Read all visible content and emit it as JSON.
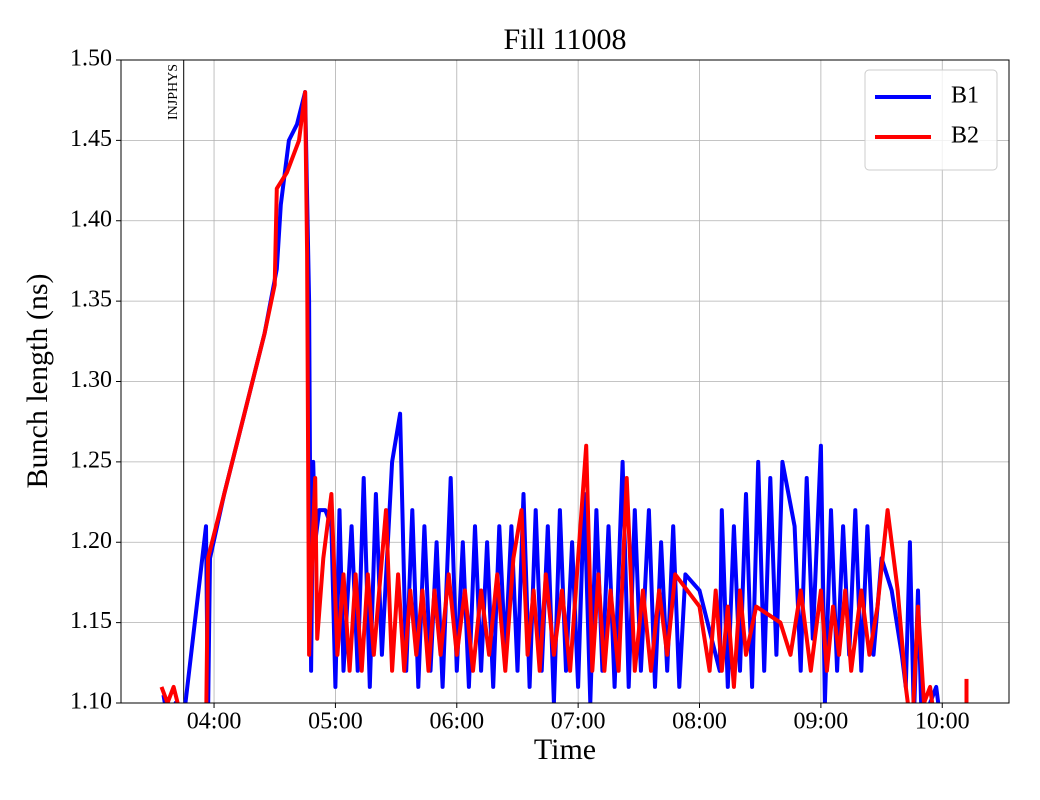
{
  "chart_data": {
    "type": "line",
    "title": "Fill 11008",
    "xlabel": "Time",
    "ylabel": "Bunch length (ns)",
    "xlim": [
      "03:14",
      "10:33"
    ],
    "xticks": [
      "04:00",
      "05:00",
      "06:00",
      "07:00",
      "08:00",
      "09:00",
      "10:00"
    ],
    "ylim": [
      1.1,
      1.5
    ],
    "yticks": [
      {
        "value": 1.1,
        "label": "1.10"
      },
      1.15,
      {
        "value": 1.2,
        "label": "1.20"
      },
      1.25,
      {
        "value": 1.3,
        "label": "1.30"
      },
      1.35,
      {
        "value": 1.4,
        "label": "1.40"
      },
      1.45,
      {
        "value": 1.5,
        "label": "1.50"
      }
    ],
    "grid": true,
    "legend": "upper right",
    "vlines": [
      {
        "x": "03:45",
        "label": "INJPHYS"
      }
    ],
    "series": [
      {
        "name": "B1",
        "color": "#0000ff",
        "x": [
          "03:35",
          "03:37",
          "03:41",
          "03:44",
          "03:56",
          "03:57",
          "03:58",
          "04:05",
          "04:15",
          "04:25",
          "04:31",
          "04:33",
          "04:37",
          "04:41",
          "04:45",
          "04:47",
          "04:48",
          "04:49",
          "04:50",
          "04:52",
          "04:55",
          "04:58",
          "05:00",
          "05:02",
          "05:04",
          "05:08",
          "05:11",
          "05:14",
          "05:17",
          "05:20",
          "05:23",
          "05:28",
          "05:32",
          "05:35",
          "05:38",
          "05:41",
          "05:44",
          "05:47",
          "05:50",
          "05:53",
          "05:57",
          "06:00",
          "06:03",
          "06:06",
          "06:09",
          "06:12",
          "06:15",
          "06:18",
          "06:21",
          "06:24",
          "06:27",
          "06:30",
          "06:33",
          "06:36",
          "06:39",
          "06:42",
          "06:45",
          "06:48",
          "06:51",
          "06:54",
          "06:57",
          "07:00",
          "07:03",
          "07:06",
          "07:09",
          "07:12",
          "07:15",
          "07:18",
          "07:22",
          "07:25",
          "07:28",
          "07:31",
          "07:35",
          "07:38",
          "07:41",
          "07:44",
          "07:47",
          "07:50",
          "07:53",
          "08:00",
          "08:10",
          "08:11",
          "08:14",
          "08:17",
          "08:20",
          "08:23",
          "08:26",
          "08:29",
          "08:32",
          "08:35",
          "08:38",
          "08:41",
          "08:47",
          "08:50",
          "08:53",
          "08:56",
          "09:00",
          "09:02",
          "09:05",
          "09:08",
          "09:11",
          "09:14",
          "09:17",
          "09:20",
          "09:23",
          "09:26",
          "09:30",
          "09:35",
          "09:40",
          "09:42",
          "09:44",
          "09:46",
          "09:48",
          "09:50",
          "09:54",
          "09:57",
          "10:00"
        ],
        "values": [
          1.105,
          1.09,
          1.1,
          1.08,
          1.21,
          1.09,
          1.19,
          1.23,
          1.28,
          1.33,
          1.37,
          1.41,
          1.45,
          1.46,
          1.48,
          1.35,
          1.12,
          1.25,
          1.2,
          1.22,
          1.22,
          1.21,
          1.11,
          1.22,
          1.12,
          1.21,
          1.12,
          1.24,
          1.11,
          1.23,
          1.13,
          1.25,
          1.28,
          1.12,
          1.22,
          1.11,
          1.21,
          1.12,
          1.2,
          1.11,
          1.24,
          1.12,
          1.2,
          1.11,
          1.21,
          1.12,
          1.2,
          1.11,
          1.21,
          1.13,
          1.21,
          1.12,
          1.23,
          1.11,
          1.22,
          1.12,
          1.21,
          1.1,
          1.22,
          1.12,
          1.2,
          1.11,
          1.23,
          1.1,
          1.22,
          1.12,
          1.21,
          1.11,
          1.25,
          1.11,
          1.22,
          1.12,
          1.22,
          1.11,
          1.2,
          1.12,
          1.21,
          1.11,
          1.18,
          1.17,
          1.12,
          1.22,
          1.11,
          1.21,
          1.12,
          1.23,
          1.11,
          1.25,
          1.12,
          1.24,
          1.13,
          1.25,
          1.21,
          1.12,
          1.24,
          1.14,
          1.26,
          1.1,
          1.22,
          1.12,
          1.21,
          1.13,
          1.22,
          1.12,
          1.21,
          1.13,
          1.19,
          1.17,
          1.13,
          1.11,
          1.2,
          1.09,
          1.17,
          1.08,
          1.1,
          1.11,
          1.08
        ]
      },
      {
        "name": "B2",
        "color": "#ff0000",
        "x": [
          "03:34",
          "03:37",
          "03:40",
          "03:44",
          "03:56",
          "03:57",
          "04:05",
          "04:15",
          "04:25",
          "04:30",
          "04:31",
          "04:36",
          "04:42",
          "04:45",
          "04:46",
          "04:47",
          "04:49",
          "04:50",
          "04:51",
          "04:54",
          "04:58",
          "05:01",
          "05:04",
          "05:07",
          "05:10",
          "05:13",
          "05:16",
          "05:19",
          "05:25",
          "05:28",
          "05:31",
          "05:34",
          "05:37",
          "05:40",
          "05:43",
          "05:46",
          "05:49",
          "05:52",
          "05:56",
          "06:00",
          "06:04",
          "06:08",
          "06:12",
          "06:16",
          "06:20",
          "06:24",
          "06:28",
          "06:32",
          "06:35",
          "06:38",
          "06:41",
          "06:44",
          "06:48",
          "06:52",
          "06:56",
          "07:00",
          "07:04",
          "07:07",
          "07:10",
          "07:13",
          "07:16",
          "07:20",
          "07:24",
          "07:28",
          "07:32",
          "07:36",
          "07:40",
          "07:44",
          "07:48",
          "08:00",
          "08:05",
          "08:08",
          "08:11",
          "08:14",
          "08:17",
          "08:20",
          "08:23",
          "08:28",
          "08:40",
          "08:45",
          "08:50",
          "08:55",
          "09:00",
          "09:03",
          "09:06",
          "09:09",
          "09:12",
          "09:15",
          "09:20",
          "09:24",
          "09:28",
          "09:33",
          "09:38",
          "09:42",
          "09:45",
          "09:48",
          "09:51",
          "09:54",
          "09:57",
          "10:05",
          "10:12",
          "10:12"
        ],
        "values": [
          1.11,
          1.1,
          1.11,
          1.09,
          1.08,
          1.19,
          1.23,
          1.28,
          1.33,
          1.36,
          1.42,
          1.43,
          1.45,
          1.48,
          1.38,
          1.13,
          1.21,
          1.24,
          1.14,
          1.19,
          1.23,
          1.13,
          1.18,
          1.12,
          1.18,
          1.12,
          1.18,
          1.13,
          1.22,
          1.12,
          1.18,
          1.12,
          1.17,
          1.13,
          1.17,
          1.12,
          1.17,
          1.13,
          1.18,
          1.13,
          1.17,
          1.12,
          1.17,
          1.13,
          1.18,
          1.12,
          1.19,
          1.22,
          1.13,
          1.17,
          1.12,
          1.18,
          1.13,
          1.17,
          1.12,
          1.19,
          1.26,
          1.12,
          1.18,
          1.12,
          1.17,
          1.12,
          1.24,
          1.12,
          1.17,
          1.12,
          1.17,
          1.13,
          1.18,
          1.16,
          1.12,
          1.17,
          1.12,
          1.16,
          1.11,
          1.17,
          1.13,
          1.16,
          1.15,
          1.13,
          1.17,
          1.12,
          1.17,
          1.12,
          1.16,
          1.13,
          1.17,
          1.12,
          1.17,
          1.13,
          1.16,
          1.22,
          1.17,
          1.11,
          1.08,
          1.16,
          1.1,
          1.11,
          1.08,
          null,
          1.09,
          1.115
        ]
      }
    ]
  }
}
